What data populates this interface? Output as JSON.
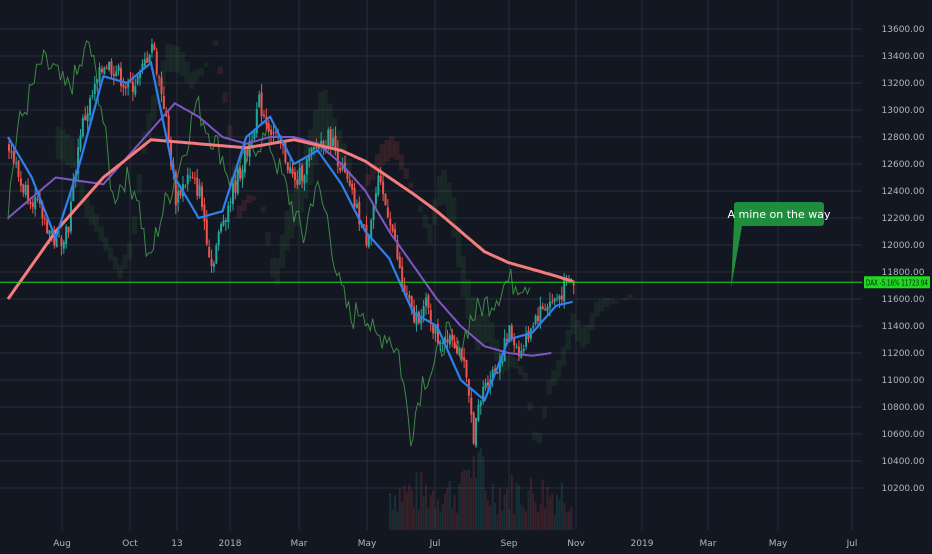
{
  "chart_data": {
    "type": "line",
    "title": "",
    "instrument": "DAX",
    "last_price_label": "DAX -5.16% 11723.94",
    "last_price": 11723.94,
    "x_labels": [
      "Aug",
      "Oct",
      "13",
      "2018",
      "Mar",
      "May",
      "Jul",
      "Sep",
      "Nov",
      "2019",
      "Mar",
      "May",
      "Jul"
    ],
    "y_ticks": [
      10200,
      10400,
      10600,
      10800,
      11000,
      11200,
      11400,
      11600,
      11800,
      12000,
      12200,
      12400,
      12600,
      12800,
      13000,
      13200,
      13400,
      13600
    ],
    "y_tick_labels": [
      "10200.00",
      "10400.00",
      "10600.00",
      "10800.00",
      "11000.00",
      "11200.00",
      "11400.00",
      "11600.00",
      "11800.00",
      "12000.00",
      "12200.00",
      "12400.00",
      "12600.00",
      "12800.00",
      "13000.00",
      "13200.00",
      "13400.00",
      "13600.00"
    ],
    "ylim": [
      10100,
      13700
    ],
    "grid": true,
    "annotation": "A mine on the way",
    "colors": {
      "background": "#131722",
      "up_candle": "#26a69a",
      "down_candle": "#ef5350",
      "fast_ma": "#2f80ed",
      "slow_ma": "#7e57c2",
      "long_ma": "#f47c7c",
      "lagging_line": "#4caf50",
      "price_line": "#1ed91e",
      "callout": "#1e8e3e"
    },
    "series": [
      {
        "key": "close",
        "x_idx": [
          0,
          5,
          10,
          15,
          20,
          25,
          30,
          35,
          40,
          45,
          50,
          55,
          60,
          65,
          70,
          75,
          80,
          85,
          90,
          95,
          100,
          105,
          110,
          115,
          120,
          125,
          130,
          135,
          140,
          145,
          150,
          155,
          160,
          165,
          170,
          175,
          180,
          185,
          190,
          195,
          200,
          205,
          210,
          215,
          220,
          225,
          230,
          235,
          240,
          245
        ],
        "values": [
          12750,
          12450,
          12350,
          12180,
          12000,
          12150,
          12850,
          13100,
          13350,
          13300,
          13150,
          13250,
          13500,
          13050,
          12350,
          12500,
          12400,
          11850,
          12200,
          12450,
          12700,
          13050,
          12850,
          12700,
          12450,
          12600,
          12750,
          12800,
          12550,
          12300,
          12050,
          12450,
          12200,
          11700,
          11450,
          11550,
          11300,
          11350,
          11200,
          10600,
          11000,
          11100,
          11350,
          11200,
          11450,
          11550,
          11600,
          11723.94,
          11723.94,
          11723.94
        ]
      },
      {
        "key": "fast_ma",
        "x_idx": [
          0,
          10,
          20,
          30,
          40,
          50,
          60,
          70,
          80,
          90,
          100,
          110,
          120,
          130,
          140,
          150,
          160,
          170,
          180,
          190,
          200,
          210,
          220,
          230,
          237
        ],
        "values": [
          12800,
          12500,
          12050,
          12600,
          13250,
          13200,
          13350,
          12500,
          12200,
          12250,
          12800,
          12950,
          12600,
          12700,
          12450,
          12100,
          11900,
          11500,
          11400,
          11000,
          10850,
          11300,
          11350,
          11550,
          11580
        ]
      },
      {
        "key": "slow_ma",
        "x_idx": [
          0,
          20,
          40,
          60,
          70,
          80,
          90,
          100,
          110,
          120,
          130,
          140,
          150,
          160,
          170,
          180,
          190,
          200,
          210,
          220,
          228
        ],
        "values": [
          12200,
          12500,
          12450,
          12850,
          13050,
          12950,
          12800,
          12750,
          12800,
          12800,
          12750,
          12600,
          12400,
          12100,
          11850,
          11600,
          11400,
          11250,
          11200,
          11180,
          11200
        ]
      },
      {
        "key": "long_ma",
        "x_idx": [
          0,
          20,
          40,
          60,
          80,
          100,
          120,
          140,
          150,
          160,
          170,
          180,
          190,
          200,
          210,
          220,
          230,
          237
        ],
        "values": [
          11600,
          12100,
          12500,
          12780,
          12750,
          12720,
          12780,
          12700,
          12620,
          12500,
          12380,
          12250,
          12100,
          11950,
          11870,
          11820,
          11770,
          11730
        ]
      }
    ]
  }
}
